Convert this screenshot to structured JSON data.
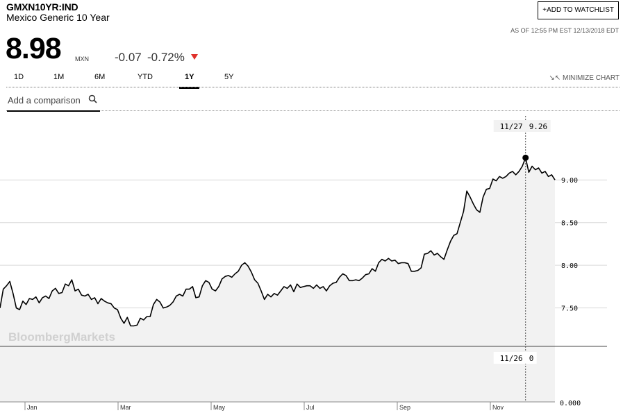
{
  "header": {
    "ticker": "GMXN10YR:IND",
    "name": "Mexico Generic 10 Year",
    "watchlist_label": "ADD TO WATCHLIST",
    "as_of": "AS OF 12:55 PM EST 12/13/2018 EDT"
  },
  "quote": {
    "price": "8.98",
    "currency": "MXN",
    "change": "-0.07",
    "change_pct": "-0.72%",
    "direction_color": "#e0312b"
  },
  "tabs": [
    {
      "label": "1D",
      "active": false
    },
    {
      "label": "1M",
      "active": false
    },
    {
      "label": "6M",
      "active": false
    },
    {
      "label": "YTD",
      "active": false
    },
    {
      "label": "1Y",
      "active": true
    },
    {
      "label": "5Y",
      "active": false
    }
  ],
  "minimize_label": "MINIMIZE CHART",
  "compare_placeholder": "Add a comparison",
  "watermark": "BloombergMarkets",
  "tooltip": {
    "price_date": "11/27",
    "price_value": "9.26",
    "volume_date": "11/26",
    "volume_value": "0"
  },
  "chart_data": {
    "type": "area",
    "title": "",
    "xlabel": "",
    "ylabel": "",
    "ylim": [
      7.05,
      9.75
    ],
    "yticks": [
      9.0,
      8.5,
      8.0,
      7.5
    ],
    "ytick_labels": [
      "9.00",
      "8.50",
      "8.00",
      "7.50"
    ],
    "volume_tick_label": "0.000",
    "month_labels": [
      "Jan",
      "Mar",
      "May",
      "Jul",
      "Sep",
      "Nov"
    ],
    "grid": true,
    "highlight": {
      "date": "11/27",
      "value": 9.26
    },
    "series": [
      {
        "values": [
          7.5,
          7.72,
          7.76,
          7.81,
          7.67,
          7.5,
          7.48,
          7.58,
          7.54,
          7.61,
          7.6,
          7.63,
          7.56,
          7.62,
          7.64,
          7.61,
          7.7,
          7.73,
          7.67,
          7.68,
          7.78,
          7.76,
          7.83,
          7.7,
          7.72,
          7.65,
          7.64,
          7.66,
          7.6,
          7.62,
          7.55,
          7.61,
          7.58,
          7.56,
          7.55,
          7.5,
          7.48,
          7.38,
          7.32,
          7.39,
          7.29,
          7.29,
          7.3,
          7.38,
          7.36,
          7.4,
          7.4,
          7.54,
          7.6,
          7.57,
          7.5,
          7.51,
          7.53,
          7.57,
          7.64,
          7.66,
          7.64,
          7.72,
          7.72,
          7.75,
          7.62,
          7.63,
          7.76,
          7.82,
          7.8,
          7.72,
          7.7,
          7.75,
          7.84,
          7.87,
          7.88,
          7.86,
          7.9,
          7.93,
          8.0,
          8.03,
          7.99,
          7.92,
          7.83,
          7.79,
          7.7,
          7.6,
          7.66,
          7.63,
          7.67,
          7.65,
          7.7,
          7.75,
          7.73,
          7.77,
          7.69,
          7.78,
          7.74,
          7.75,
          7.76,
          7.76,
          7.73,
          7.77,
          7.73,
          7.75,
          7.7,
          7.76,
          7.79,
          7.8,
          7.86,
          7.9,
          7.88,
          7.82,
          7.82,
          7.83,
          7.82,
          7.85,
          7.89,
          7.9,
          7.96,
          7.93,
          8.03,
          8.07,
          8.05,
          8.08,
          8.05,
          8.06,
          8.02,
          8.03,
          8.03,
          8.02,
          7.93,
          7.93,
          7.94,
          7.97,
          8.13,
          8.14,
          8.17,
          8.12,
          8.14,
          8.1,
          8.07,
          8.18,
          8.28,
          8.35,
          8.37,
          8.5,
          8.63,
          8.87,
          8.8,
          8.72,
          8.65,
          8.62,
          8.8,
          8.89,
          8.9,
          9.01,
          8.99,
          9.04,
          9.02,
          9.04,
          9.08,
          9.1,
          9.06,
          9.1,
          9.16,
          9.26,
          9.09,
          9.16,
          9.12,
          9.14,
          9.08,
          9.1,
          9.04,
          9.06,
          9.0
        ]
      }
    ]
  }
}
